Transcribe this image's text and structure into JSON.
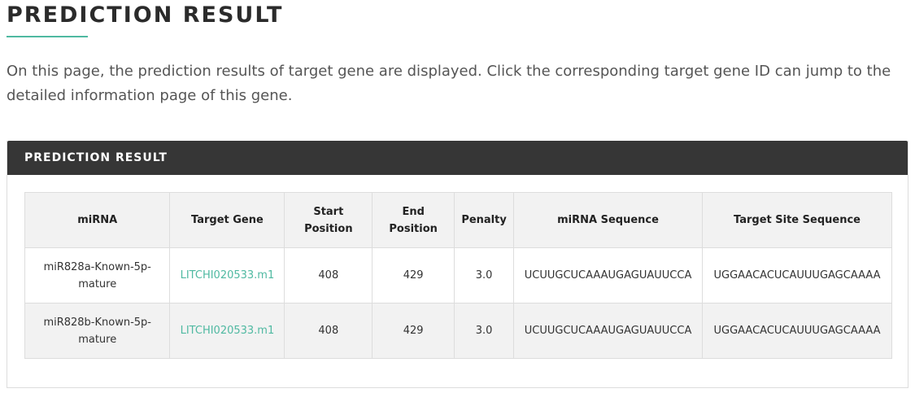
{
  "page": {
    "title": "PREDICTION RESULT",
    "intro": "On this page, the prediction results of target gene are displayed. Click the corresponding target gene ID can jump to the detailed information page of this gene."
  },
  "panel": {
    "header": "PREDICTION RESULT"
  },
  "table": {
    "columns": {
      "mirna": "miRNA",
      "target_gene": "Target Gene",
      "start_line1": "Start",
      "start_line2": "Position",
      "end_line1": "End",
      "end_line2": "Position",
      "penalty": "Penalty",
      "mirna_sequence": "miRNA Sequence",
      "target_site_sequence": "Target Site Sequence"
    },
    "rows": [
      {
        "mirna_line1": "miR828a-Known-5p-",
        "mirna_line2": "mature",
        "target_gene": "LITCHI020533.m1",
        "start": "408",
        "end": "429",
        "penalty": "3.0",
        "mirna_sequence": "UCUUGCUCAAAUGAGUAUUCCA",
        "target_site_sequence": "UGGAACACUCAUUUGAGCAAAA"
      },
      {
        "mirna_line1": "miR828b-Known-5p-",
        "mirna_line2": "mature",
        "target_gene": "LITCHI020533.m1",
        "start": "408",
        "end": "429",
        "penalty": "3.0",
        "mirna_sequence": "UCUUGCUCAAAUGAGUAUUCCA",
        "target_site_sequence": "UGGAACACUCAUUUGAGCAAAA"
      }
    ]
  },
  "colors": {
    "accent": "#4fb9a1",
    "header_bg": "#363636",
    "stripe_bg": "#f2f2f2"
  }
}
